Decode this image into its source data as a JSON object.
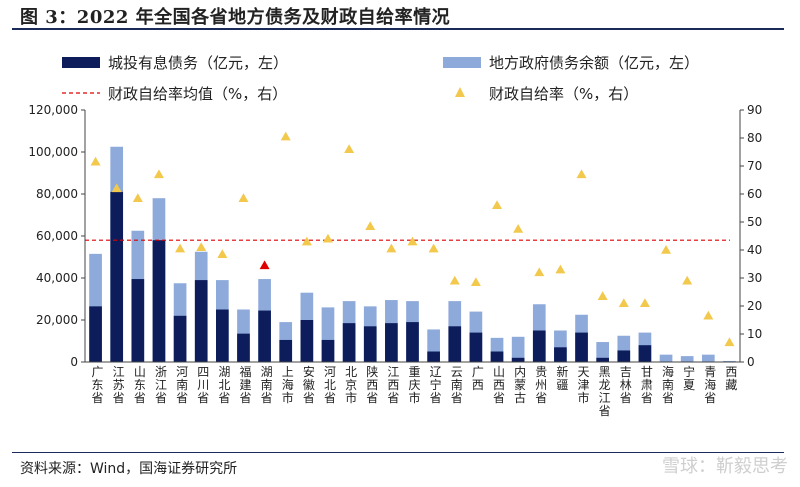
{
  "header": {
    "title": "图 3：2022 年全国各省地方债务及财政自给率情况"
  },
  "footer": {
    "source": "资料来源：Wind，国海证券研究所",
    "watermark": "雪球：靳毅思考"
  },
  "chart_data": {
    "type": "bar",
    "categories": [
      "广东省",
      "江苏省",
      "山东省",
      "浙江省",
      "河南省",
      "四川省",
      "湖北省",
      "福建省",
      "湖南省",
      "上海市",
      "安徽省",
      "河北省",
      "北京市",
      "陕西省",
      "江西省",
      "重庆市",
      "辽宁省",
      "云南省",
      "广西",
      "山西省",
      "内蒙古",
      "贵州省",
      "新疆",
      "天津市",
      "黑龙江省",
      "吉林省",
      "甘肃省",
      "海南省",
      "宁夏",
      "青海省",
      "西藏"
    ],
    "series": [
      {
        "name": "城投有息债务（亿元，左）",
        "axis": "left",
        "kind": "bar",
        "color": "#0d1d5c",
        "values": [
          26500,
          81000,
          39500,
          58000,
          22000,
          39000,
          25000,
          13500,
          24500,
          10500,
          20000,
          10500,
          18500,
          17000,
          18500,
          19000,
          5000,
          17000,
          14000,
          5000,
          2000,
          15000,
          7000,
          14000,
          2000,
          5500,
          8000,
          0,
          0,
          0,
          0
        ]
      },
      {
        "name": "地方政府债务余额（亿元，左）",
        "axis": "left",
        "kind": "bar",
        "color": "#8eaadb",
        "values": [
          51500,
          102500,
          62500,
          78000,
          37500,
          52500,
          39000,
          25000,
          39500,
          19000,
          33000,
          26000,
          29000,
          26500,
          29500,
          29000,
          15500,
          29000,
          24000,
          11500,
          12000,
          27500,
          15000,
          22500,
          9500,
          12500,
          14000,
          3500,
          2800,
          3500,
          500
        ]
      },
      {
        "name": "财政自给率均值（%，右）",
        "axis": "right",
        "kind": "line",
        "color": "#e00000",
        "value": 43.5
      },
      {
        "name": "财政自给率（%，右）",
        "axis": "right",
        "kind": "scatter",
        "color": "#f2c94c",
        "values": [
          71.5,
          62,
          58.5,
          67,
          40.5,
          41,
          38.5,
          58.5,
          34.5,
          80.5,
          43,
          44,
          76,
          48.5,
          40.5,
          43,
          40.5,
          29,
          28.5,
          56,
          47.5,
          32,
          33,
          67,
          23.5,
          21,
          21,
          40,
          29,
          16.5,
          7
        ]
      }
    ],
    "highlight": {
      "category": "湖南省",
      "color": "#e00000"
    },
    "left_axis": {
      "ylim": [
        0,
        120000
      ],
      "ticks": [
        "0",
        "20,000",
        "40,000",
        "60,000",
        "80,000",
        "100,000",
        "120,000"
      ]
    },
    "right_axis": {
      "ylim": [
        0,
        90
      ],
      "ticks": [
        "0",
        "10",
        "20",
        "30",
        "40",
        "50",
        "60",
        "70",
        "80",
        "90"
      ]
    },
    "legend_placement": "top"
  }
}
